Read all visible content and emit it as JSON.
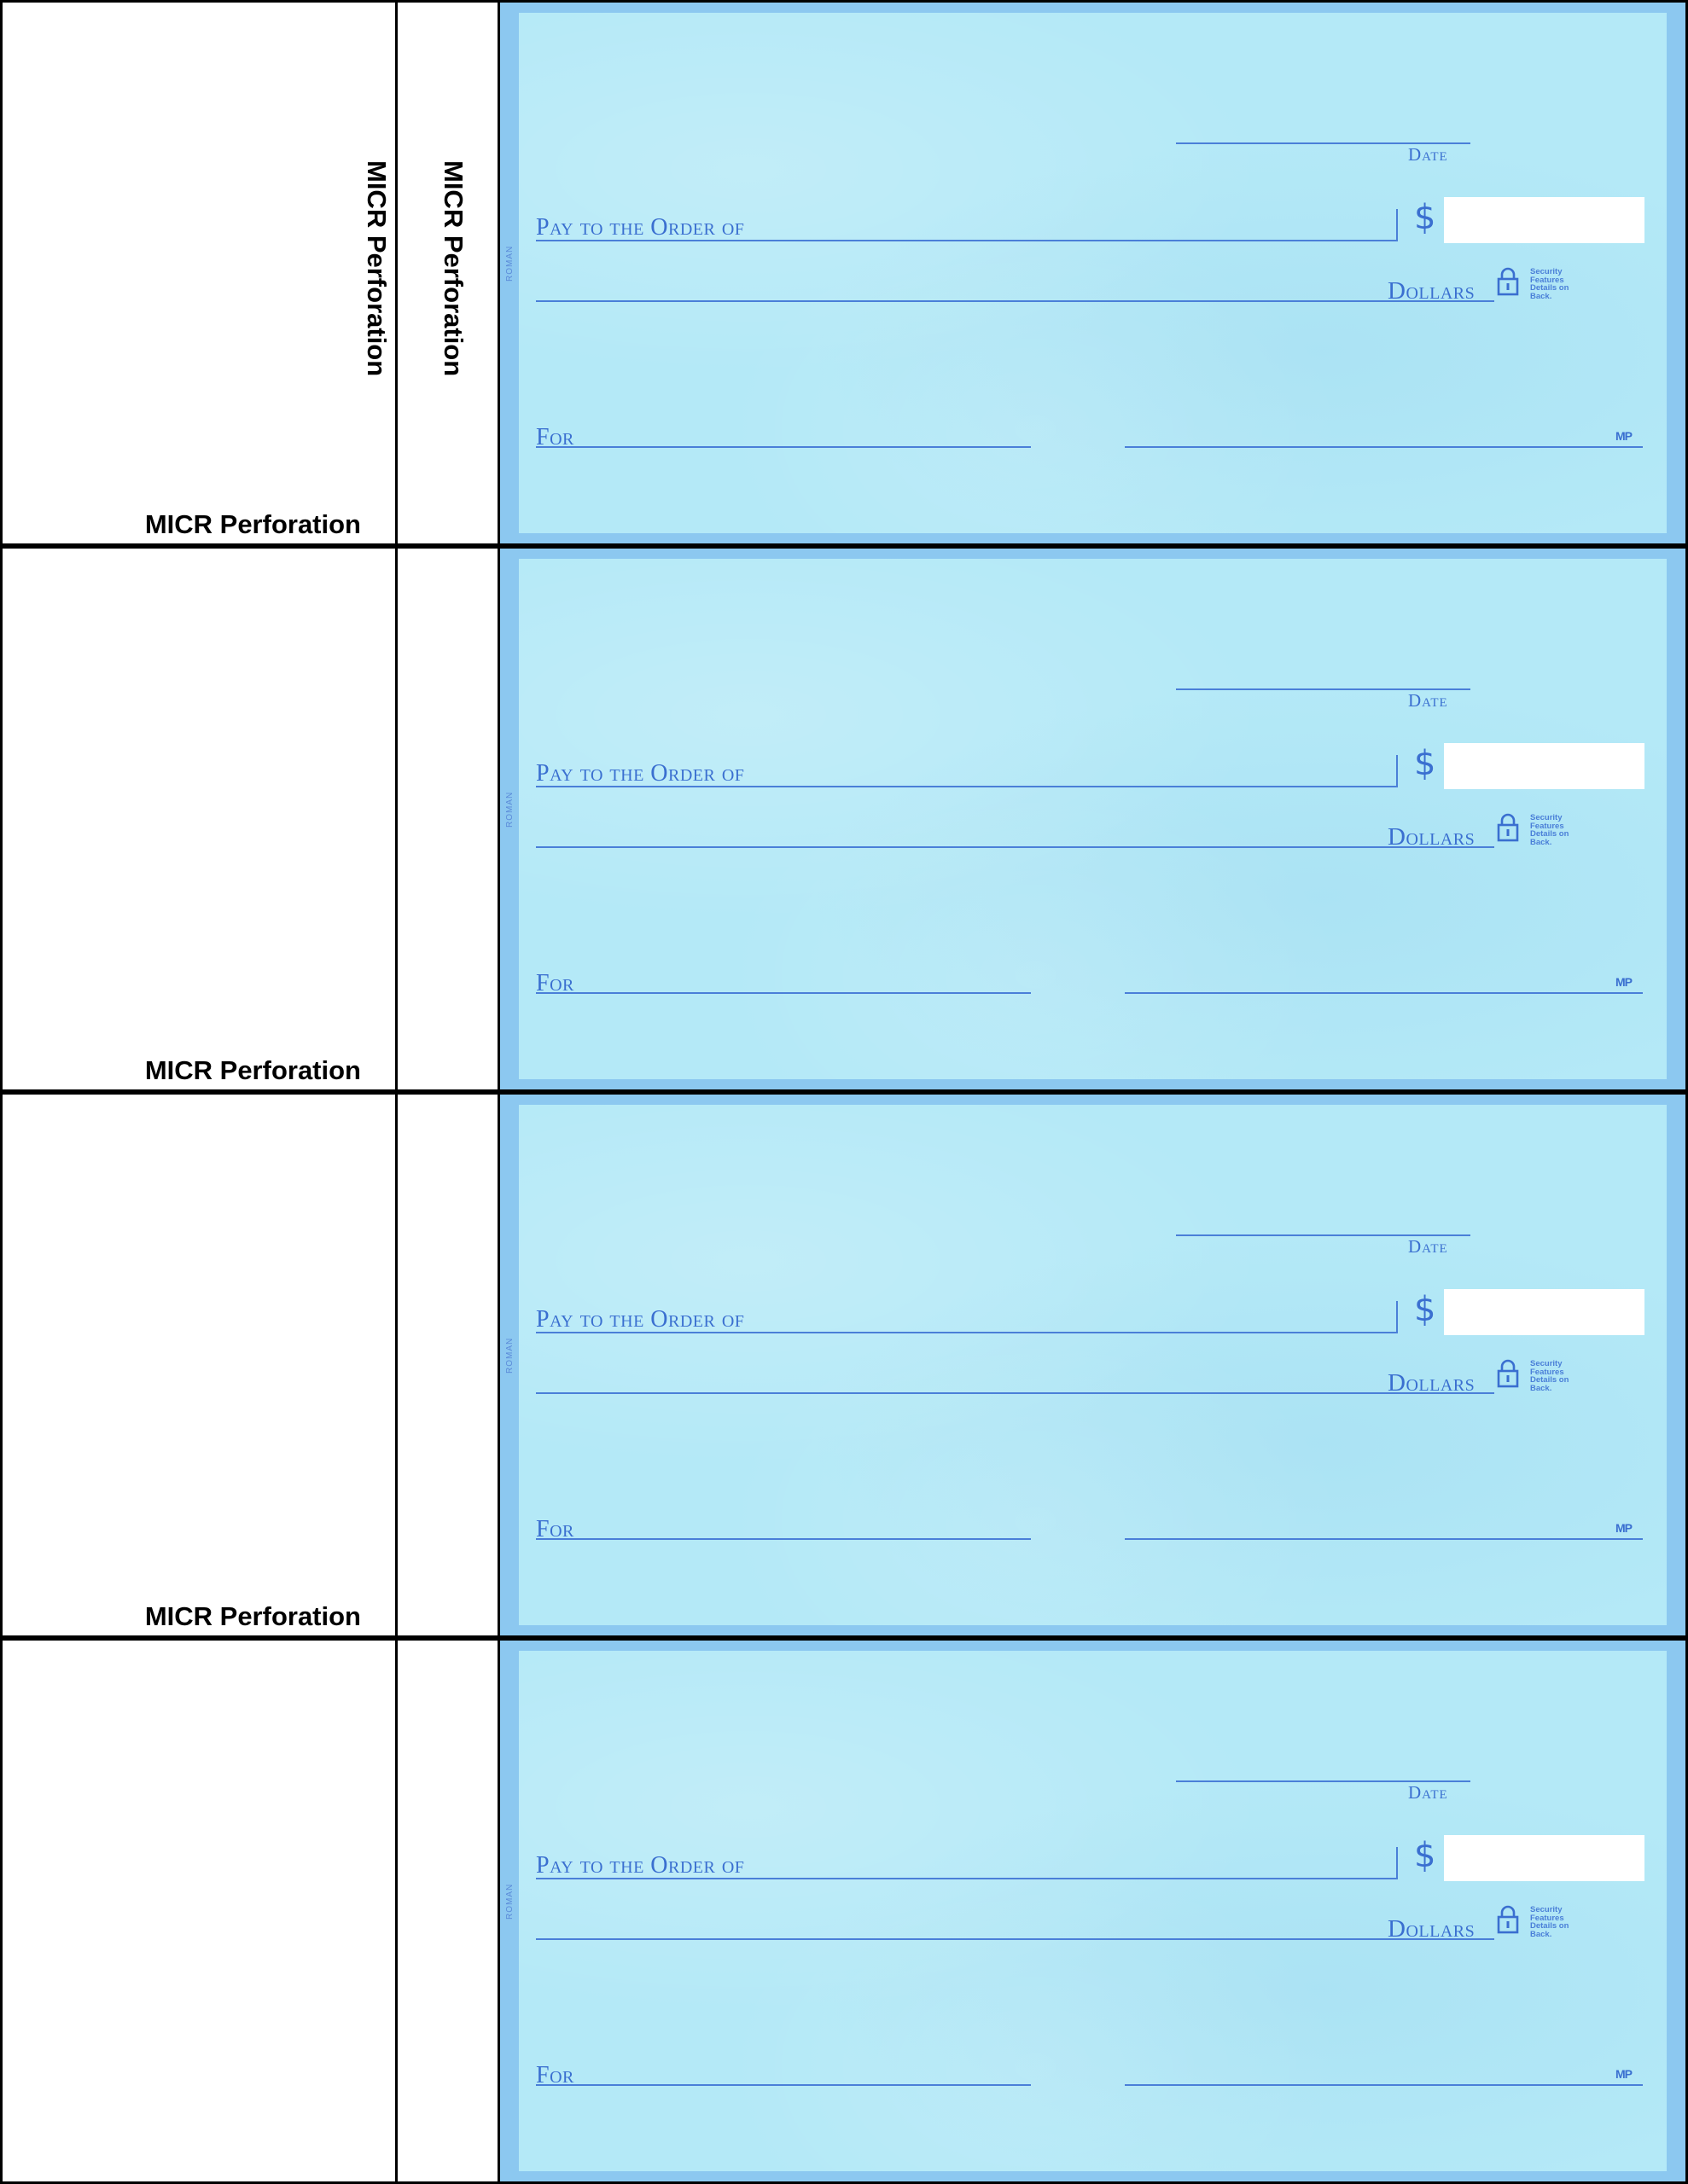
{
  "stub_labels": {
    "micr_perforation": "MICR Perforation"
  },
  "checks": [
    {
      "date_label": "Date",
      "pay_label": "Pay to the Order of",
      "currency_symbol": "$",
      "dollars_label": "Dollars",
      "for_label": "For",
      "side_text": "ROMAN",
      "security_note": "Security Features Details on Back.",
      "printer_mark": "MP",
      "bottom_stub_label": "MICR Perforation"
    },
    {
      "date_label": "Date",
      "pay_label": "Pay to the Order of",
      "currency_symbol": "$",
      "dollars_label": "Dollars",
      "for_label": "For",
      "side_text": "ROMAN",
      "security_note": "Security Features Details on Back.",
      "printer_mark": "MP",
      "bottom_stub_label": "MICR Perforation"
    },
    {
      "date_label": "Date",
      "pay_label": "Pay to the Order of",
      "currency_symbol": "$",
      "dollars_label": "Dollars",
      "for_label": "For",
      "side_text": "ROMAN",
      "security_note": "Security Features Details on Back.",
      "printer_mark": "MP",
      "bottom_stub_label": "MICR Perforation"
    },
    {
      "date_label": "Date",
      "pay_label": "Pay to the Order of",
      "currency_symbol": "$",
      "dollars_label": "Dollars",
      "for_label": "For",
      "side_text": "ROMAN",
      "security_note": "Security Features Details on Back.",
      "printer_mark": "MP",
      "bottom_stub_label": ""
    }
  ],
  "colors": {
    "check_border": "#8cc8f0",
    "check_paper": "#b4e9f7",
    "check_ink": "#3a6fd0"
  },
  "icons": {
    "security": "lock-icon"
  }
}
